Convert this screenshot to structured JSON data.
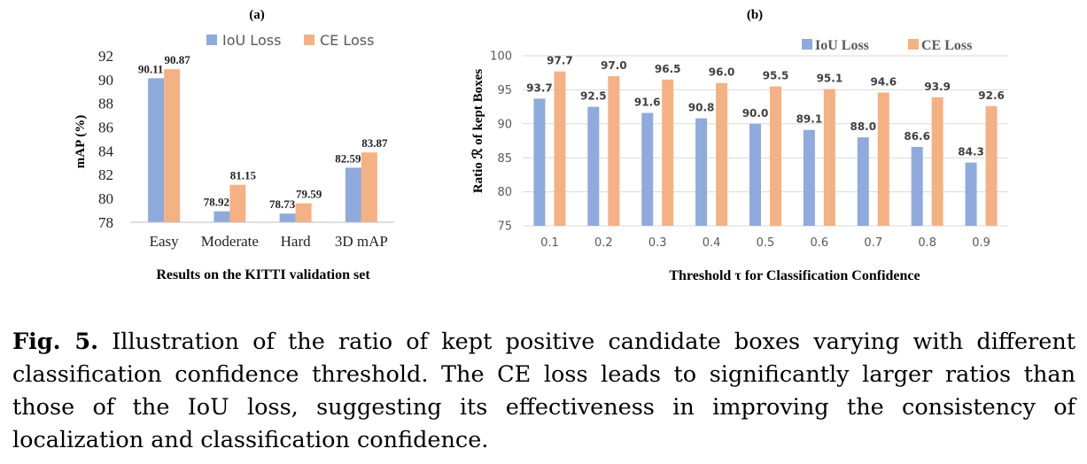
{
  "chart_data": [
    {
      "type": "bar",
      "panel_label": "(a)",
      "title": "",
      "xlabel": "Results on the KITTI validation set",
      "ylabel": "mAP (%)",
      "categories": [
        "Easy",
        "Moderate",
        "Hard",
        "3D mAP"
      ],
      "series": [
        {
          "name": "IoU Loss",
          "values": [
            90.11,
            78.92,
            78.73,
            82.59
          ]
        },
        {
          "name": "CE Loss",
          "values": [
            90.87,
            81.15,
            79.59,
            83.87
          ]
        }
      ],
      "data_labels": [
        [
          "90.11",
          "78.92",
          "78.73",
          "82.59"
        ],
        [
          "90.87",
          "81.15",
          "79.59",
          "83.87"
        ]
      ],
      "ylim": [
        78,
        92
      ],
      "yticks": [
        "78",
        "80",
        "82",
        "84",
        "86",
        "88",
        "90",
        "92"
      ],
      "grid": false,
      "legend": "top-right"
    },
    {
      "type": "bar",
      "panel_label": "(b)",
      "title": "",
      "xlabel": "Threshold τ for Classification Confidence",
      "ylabel": "Ratio ℛ of kept Boxes",
      "categories": [
        "0.1",
        "0.2",
        "0.3",
        "0.4",
        "0.5",
        "0.6",
        "0.7",
        "0.8",
        "0.9"
      ],
      "series": [
        {
          "name": "IoU Loss",
          "values": [
            93.7,
            92.5,
            91.6,
            90.8,
            90.0,
            89.1,
            88.0,
            86.6,
            84.3
          ]
        },
        {
          "name": "CE Loss",
          "values": [
            97.7,
            97.0,
            96.5,
            96.0,
            95.5,
            95.1,
            94.6,
            93.9,
            92.6
          ]
        }
      ],
      "data_labels": [
        [
          "93.7",
          "92.5",
          "91.6",
          "90.8",
          "90.0",
          "89.1",
          "88.0",
          "86.6",
          "84.3"
        ],
        [
          "97.7",
          "97.0",
          "96.5",
          "96.0",
          "95.5",
          "95.1",
          "94.6",
          "93.9",
          "92.6"
        ]
      ],
      "ylim": [
        75,
        100
      ],
      "yticks": [
        "75",
        "80",
        "85",
        "90",
        "95",
        "100"
      ],
      "grid": true,
      "legend": "top-right"
    }
  ],
  "colors": {
    "iou": "#8faadc",
    "ce": "#f4b183",
    "grid": "#d9d9d9",
    "axis": "#bfbfbf"
  },
  "caption": {
    "label": "Fig. 5.",
    "text": "Illustration of the ratio of kept positive candidate boxes varying with different classification confidence threshold. The CE loss leads to significantly larger ratios than those of the IoU loss, suggesting its effectiveness in improving the consistency of localization and classification confidence."
  }
}
